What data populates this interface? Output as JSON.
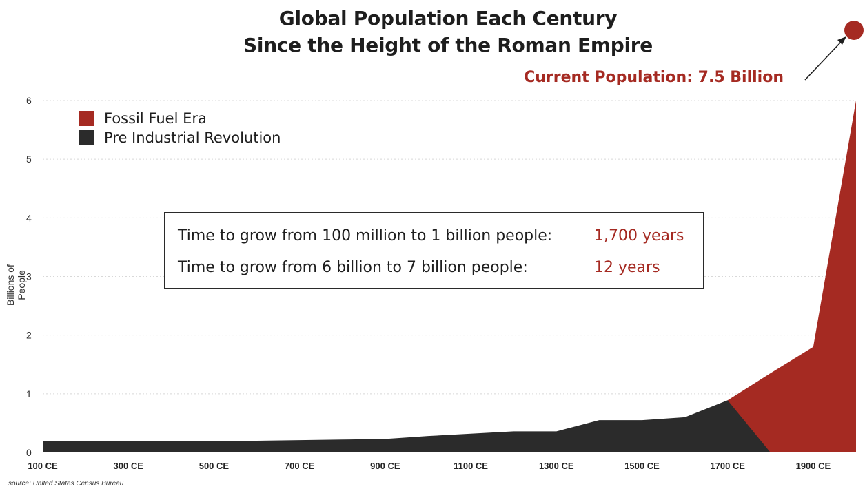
{
  "chart_data": {
    "type": "area",
    "title_line1": "Global Population Each Century",
    "title_line2": "Since the Height of the Roman Empire",
    "ylabel": "Billions of People",
    "xlabel": "",
    "ylim": [
      0,
      6
    ],
    "yticks": [
      0,
      1,
      2,
      3,
      4,
      5,
      6
    ],
    "xlim": [
      100,
      2000
    ],
    "xticks": [
      {
        "value": 100,
        "label": "100 CE"
      },
      {
        "value": 300,
        "label": "300 CE"
      },
      {
        "value": 500,
        "label": "500 CE"
      },
      {
        "value": 700,
        "label": "700 CE"
      },
      {
        "value": 900,
        "label": "900 CE"
      },
      {
        "value": 1100,
        "label": "1100 CE"
      },
      {
        "value": 1300,
        "label": "1300 CE"
      },
      {
        "value": 1500,
        "label": "1500 CE"
      },
      {
        "value": 1700,
        "label": "1700 CE"
      },
      {
        "value": 1900,
        "label": "1900 CE"
      }
    ],
    "grid": true,
    "series": [
      {
        "name": "Pre Industrial Revolution",
        "color": "#2b2b2b",
        "x": [
          100,
          200,
          300,
          400,
          500,
          600,
          700,
          800,
          900,
          1000,
          1100,
          1200,
          1300,
          1400,
          1500,
          1600,
          1700,
          1800
        ],
        "y": [
          0.19,
          0.2,
          0.2,
          0.2,
          0.2,
          0.2,
          0.21,
          0.22,
          0.23,
          0.28,
          0.32,
          0.36,
          0.36,
          0.55,
          0.55,
          0.6,
          0.89,
          0
        ]
      },
      {
        "name": "Fossil Fuel Era",
        "color": "#a52a22",
        "x": [
          1700,
          1800,
          1900,
          2000
        ],
        "y": [
          0.89,
          1.35,
          1.8,
          6.0
        ]
      }
    ],
    "legend_position": "top-left",
    "annotations": {
      "current_population": "Current Population: 7.5 Billion",
      "info_rows": [
        {
          "label": "Time to grow from 100 million to 1 billion people:",
          "value": "1,700 years"
        },
        {
          "label": "Time to grow from 6 billion to 7 billion people:",
          "value": "12 years"
        }
      ]
    },
    "source": "source: United States Census Bureau"
  }
}
